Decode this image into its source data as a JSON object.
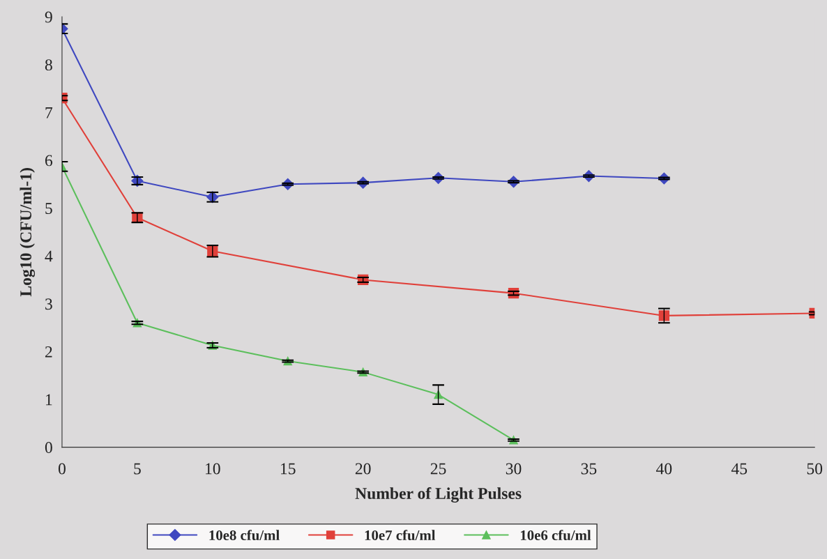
{
  "chart_data": {
    "type": "line",
    "xlabel": "Number of Light Pulses",
    "ylabel": "Log10 (CFU/ml-1)",
    "xlim": [
      0,
      50
    ],
    "xticks": [
      0,
      5,
      10,
      15,
      20,
      25,
      30,
      35,
      40,
      45,
      50
    ],
    "ylim": [
      0,
      9
    ],
    "yticks": [
      0,
      1,
      2,
      3,
      4,
      5,
      6,
      7,
      8,
      9
    ],
    "grid": false,
    "legend": "bottom",
    "line_style": "solid",
    "series": [
      {
        "name": "10e8 cfu/ml",
        "color": "#3f48c0",
        "marker": "diamond",
        "x": [
          0,
          5,
          10,
          15,
          20,
          25,
          30,
          35,
          40
        ],
        "values": [
          8.75,
          5.57,
          5.23,
          5.5,
          5.53,
          5.63,
          5.55,
          5.67,
          5.62
        ],
        "errors": [
          0.1,
          0.08,
          0.1,
          0.02,
          0.02,
          0.02,
          0.02,
          0.02,
          0.02
        ]
      },
      {
        "name": "10e7 cfu/ml",
        "color": "#e0403a",
        "marker": "square",
        "x": [
          0,
          5,
          10,
          20,
          30,
          40,
          50
        ],
        "values": [
          7.3,
          4.8,
          4.1,
          3.5,
          3.22,
          2.75,
          2.8
        ],
        "errors": [
          0.05,
          0.1,
          0.12,
          0.05,
          0.04,
          0.15,
          0.03
        ]
      },
      {
        "name": "10e6 cfu/ml",
        "color": "#5cbf5c",
        "marker": "triangle",
        "x": [
          0,
          5,
          10,
          15,
          20,
          25,
          30
        ],
        "values": [
          5.87,
          2.6,
          2.13,
          1.8,
          1.57,
          1.1,
          0.15
        ],
        "errors": [
          0.1,
          0.03,
          0.05,
          0.02,
          0.02,
          0.2,
          0.02
        ]
      }
    ]
  }
}
